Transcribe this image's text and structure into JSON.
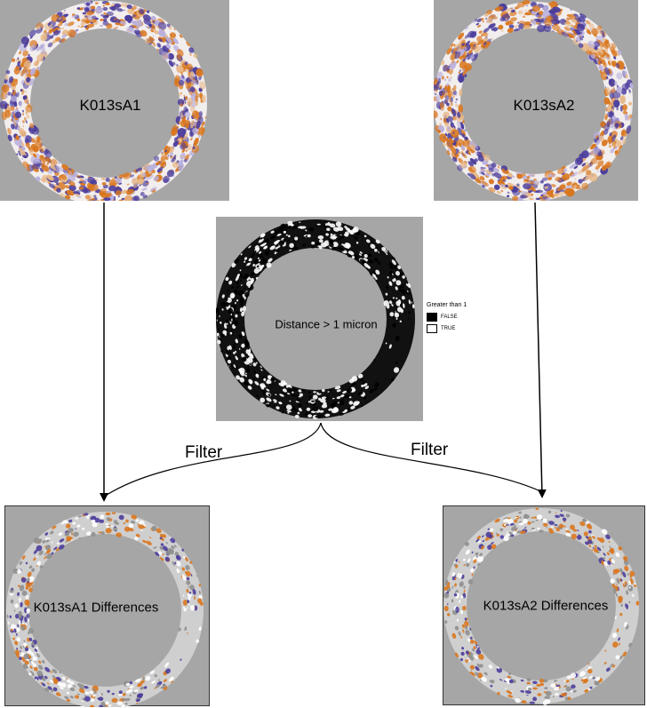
{
  "panels": {
    "top_left": {
      "label": "K013sA1"
    },
    "top_right": {
      "label": "K013sA2"
    },
    "mask": {
      "label": "Distance > 1 micron",
      "legend": {
        "title": "Greater than 1",
        "items": [
          {
            "label": "FALSE",
            "color": "#000000"
          },
          {
            "label": "TRUE",
            "color": "#ffffff"
          }
        ]
      }
    },
    "bottom_left": {
      "label": "K013sA1 Differences"
    },
    "bottom_right": {
      "label": "K013sA2 Differences"
    }
  },
  "connectors": {
    "left_filter_label": "Filter",
    "right_filter_label": "Filter"
  },
  "colors": {
    "panel_background": "#a6a6a6",
    "orange": "#d9771f",
    "purple": "#4b3d9c",
    "ring_white": "#f2eeee"
  }
}
